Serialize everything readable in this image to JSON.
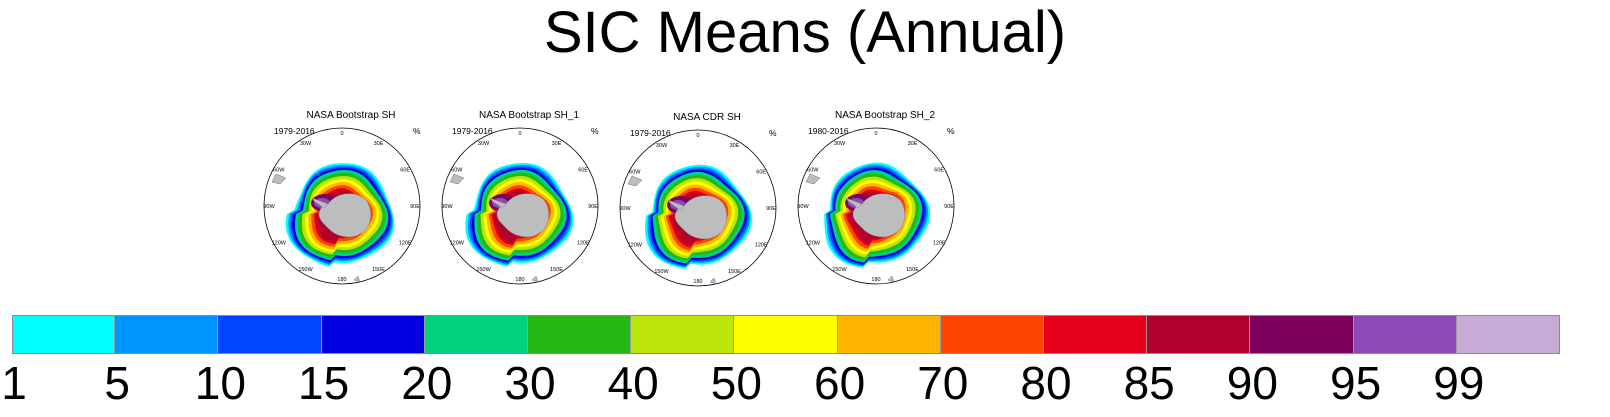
{
  "title": "SIC Means (Annual)",
  "chart_data": {
    "type": "map",
    "title": "SIC Means (Annual)",
    "units": "%",
    "panels": [
      {
        "title": "NASA Bootstrap SH",
        "period": "1979-2016",
        "units": "%"
      },
      {
        "title": "NASA Bootstrap SH_1",
        "period": "1979-2016",
        "units": "%"
      },
      {
        "title": "NASA CDR SH",
        "period": "1979-2016",
        "units": "%"
      },
      {
        "title": "NASA Bootstrap SH_2",
        "period": "1980-2016",
        "units": "%"
      }
    ],
    "longitude_labels": [
      "0",
      "30E",
      "60E",
      "90E",
      "120E",
      "150E",
      "180",
      "150W",
      "120W",
      "90W",
      "60W",
      "30W"
    ],
    "colorbar": {
      "levels": [
        "1",
        "5",
        "10",
        "15",
        "20",
        "30",
        "40",
        "50",
        "60",
        "70",
        "80",
        "85",
        "90",
        "95",
        "99"
      ],
      "colors": [
        "#00ffff",
        "#0096ff",
        "#0046ff",
        "#0000e0",
        "#00d27d",
        "#25b813",
        "#bce60a",
        "#ffff00",
        "#ffb400",
        "#ff4600",
        "#e6001c",
        "#b4002d",
        "#7d005f",
        "#8c4bb4",
        "#c8aad7"
      ]
    }
  }
}
